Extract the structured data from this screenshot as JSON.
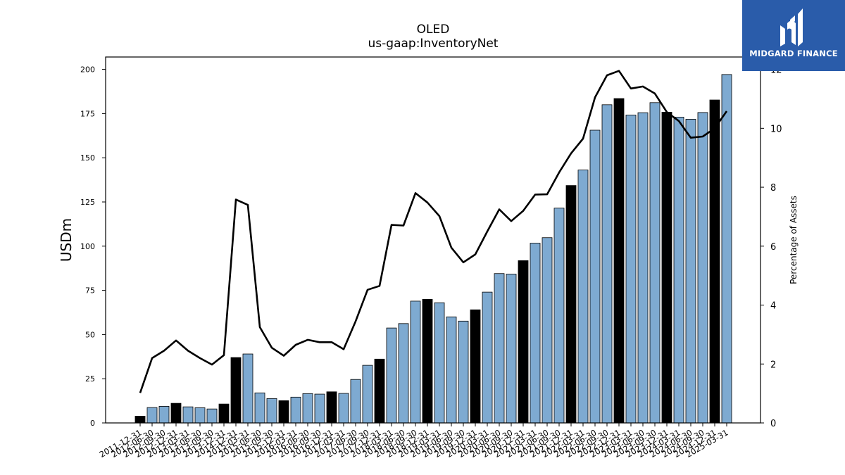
{
  "chart_data": {
    "type": "bar",
    "title": "OLED",
    "subtitle": "us-gaap:InventoryNet",
    "ylabel": "USDm",
    "y2label": "Percentage of Assets",
    "ylim": [
      0,
      207
    ],
    "y2lim": [
      0,
      12.42
    ],
    "yticks": [
      0,
      25,
      50,
      75,
      100,
      125,
      150,
      175,
      200
    ],
    "y2ticks": [
      0,
      2,
      4,
      6,
      8,
      10,
      12
    ],
    "categories": [
      "2011-12-31",
      "2012-06-30",
      "2012-09-30",
      "2012-12-31",
      "2013-03-31",
      "2013-06-30",
      "2013-09-30",
      "2013-12-31",
      "2014-12-31",
      "2015-03-31",
      "2015-06-30",
      "2015-09-30",
      "2015-12-31",
      "2016-03-31",
      "2016-06-30",
      "2016-09-30",
      "2016-12-31",
      "2017-03-31",
      "2017-06-30",
      "2017-09-30",
      "2017-12-31",
      "2018-03-31",
      "2018-06-30",
      "2018-09-30",
      "2018-12-31",
      "2019-03-31",
      "2019-06-30",
      "2019-09-30",
      "2019-12-31",
      "2020-03-31",
      "2020-06-30",
      "2020-09-30",
      "2020-12-31",
      "2021-03-31",
      "2021-06-30",
      "2021-09-30",
      "2021-12-31",
      "2022-03-31",
      "2022-06-30",
      "2022-09-30",
      "2022-12-31",
      "2023-03-31",
      "2023-06-30",
      "2023-09-30",
      "2023-12-31",
      "2024-03-31",
      "2024-06-30",
      "2024-09-30",
      "2024-12-31",
      "2025-03-31"
    ],
    "series": [
      {
        "kind": "bar",
        "values": [
          3.8,
          8.7,
          9.4,
          11.1,
          9.1,
          8.6,
          7.9,
          10.7,
          37.0,
          39.0,
          17.0,
          13.8,
          12.6,
          14.6,
          16.6,
          16.3,
          17.6,
          16.7,
          24.6,
          32.6,
          36.1,
          53.7,
          56.2,
          68.9,
          69.9,
          68.0,
          60.0,
          57.6,
          64.0,
          74.0,
          84.5,
          84.2,
          91.8,
          101.7,
          104.8,
          121.5,
          134.3,
          143.1,
          165.6,
          180.0,
          183.5,
          174.2,
          175.5,
          181.2,
          175.8,
          173.0,
          171.8,
          175.6,
          182.7,
          197.1
        ],
        "colors": [
          "#000000",
          "#7eaad1",
          "#7eaad1",
          "#000000",
          "#7eaad1",
          "#7eaad1",
          "#7eaad1",
          "#000000",
          "#000000",
          "#7eaad1",
          "#7eaad1",
          "#7eaad1",
          "#000000",
          "#7eaad1",
          "#7eaad1",
          "#7eaad1",
          "#000000",
          "#7eaad1",
          "#7eaad1",
          "#7eaad1",
          "#000000",
          "#7eaad1",
          "#7eaad1",
          "#7eaad1",
          "#000000",
          "#7eaad1",
          "#7eaad1",
          "#7eaad1",
          "#000000",
          "#7eaad1",
          "#7eaad1",
          "#7eaad1",
          "#000000",
          "#7eaad1",
          "#7eaad1",
          "#7eaad1",
          "#000000",
          "#7eaad1",
          "#7eaad1",
          "#7eaad1",
          "#000000",
          "#7eaad1",
          "#7eaad1",
          "#7eaad1",
          "#000000",
          "#7eaad1",
          "#7eaad1",
          "#7eaad1",
          "#000000",
          "#7eaad1"
        ]
      },
      {
        "kind": "line",
        "axis": "right",
        "color": "#000000",
        "values": [
          1.02,
          2.2,
          2.45,
          2.8,
          2.45,
          2.2,
          1.98,
          2.3,
          7.58,
          7.4,
          3.25,
          2.55,
          2.28,
          2.65,
          2.82,
          2.74,
          2.74,
          2.5,
          3.45,
          4.52,
          4.65,
          6.72,
          6.7,
          7.8,
          7.48,
          7.02,
          5.95,
          5.45,
          5.72,
          6.5,
          7.25,
          6.85,
          7.2,
          7.75,
          7.76,
          8.5,
          9.15,
          9.65,
          11.05,
          11.8,
          11.95,
          11.35,
          11.42,
          11.18,
          10.55,
          10.25,
          9.68,
          9.72,
          10.0,
          10.58
        ]
      }
    ],
    "colors": {
      "bar_highlight": "#000000",
      "bar_default": "#7eaad1",
      "line": "#000000"
    },
    "legend": "none",
    "grid": false
  },
  "logo": {
    "text": "MIDGARD FINANCE",
    "background": "#2a5caa"
  }
}
